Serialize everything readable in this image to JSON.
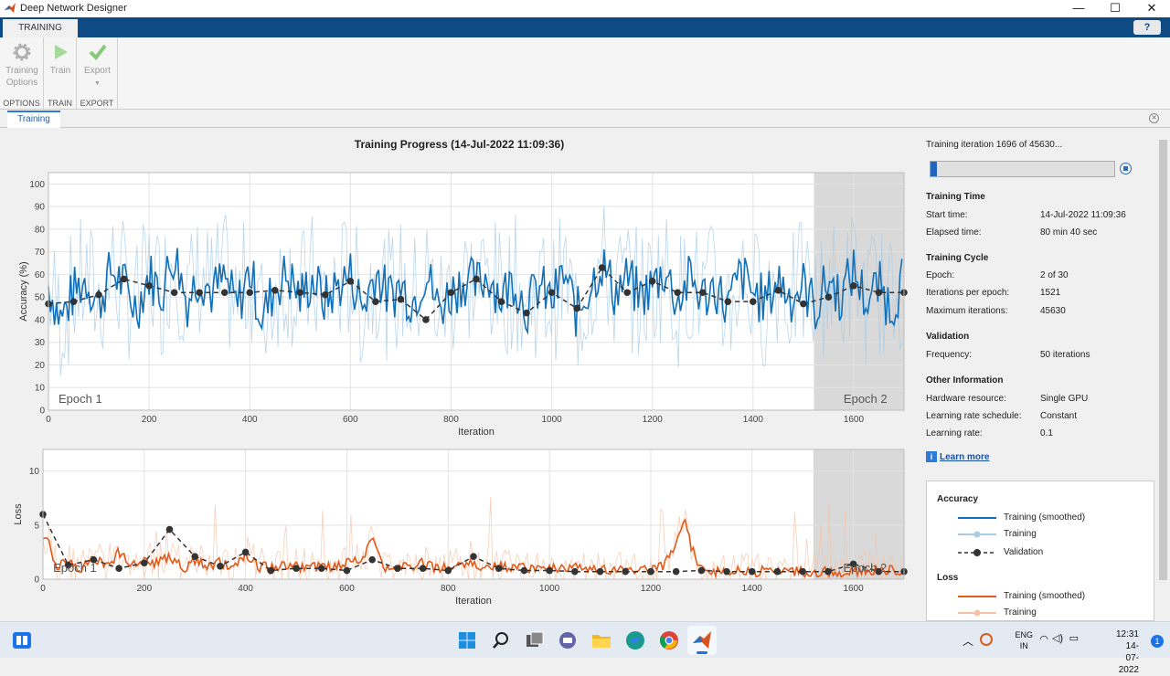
{
  "window": {
    "title": "Deep Network Designer",
    "minimize_glyph": "—",
    "maximize_glyph": "☐",
    "close_glyph": "✕"
  },
  "tabstrip": {
    "tab_label": "TRAINING",
    "help_glyph": "?"
  },
  "ribbon": {
    "groups": [
      {
        "label": "OPTIONS",
        "button": "Training Options",
        "button_line1": "Training",
        "button_line2": "Options",
        "icon": "gear-icon"
      },
      {
        "label": "TRAIN",
        "button": "Train",
        "icon": "play-icon"
      },
      {
        "label": "EXPORT",
        "button": "Export",
        "icon": "checkmark-icon"
      }
    ]
  },
  "document_tab": {
    "label": "Training"
  },
  "chart_title": "Training Progress (14-Jul-2022 11:09:36)",
  "info": {
    "iteration_text": "Training iteration 1696 of 45630...",
    "progress_fraction": 0.0372,
    "sections": {
      "training_time": {
        "title": "Training Time",
        "rows": [
          [
            "Start time:",
            "14-Jul-2022 11:09:36"
          ],
          [
            "Elapsed time:",
            "80 min 40 sec"
          ]
        ]
      },
      "training_cycle": {
        "title": "Training Cycle",
        "rows": [
          [
            "Epoch:",
            "2 of 30"
          ],
          [
            "Iterations per epoch:",
            "1521"
          ],
          [
            "Maximum iterations:",
            "45630"
          ]
        ]
      },
      "validation": {
        "title": "Validation",
        "rows": [
          [
            "Frequency:",
            "50 iterations"
          ]
        ]
      },
      "other": {
        "title": "Other Information",
        "rows": [
          [
            "Hardware resource:",
            "Single GPU"
          ],
          [
            "Learning rate schedule:",
            "Constant"
          ],
          [
            "Learning rate:",
            "0.1"
          ]
        ]
      }
    },
    "learn_more": "Learn more"
  },
  "legend": {
    "accuracy_title": "Accuracy",
    "accuracy_items": [
      "Training (smoothed)",
      "Training",
      "Validation"
    ],
    "loss_title": "Loss",
    "loss_items": [
      "Training (smoothed)",
      "Training"
    ]
  },
  "colors": {
    "accuracy_smoothed": "#1170b8",
    "accuracy_raw": "#a9cce6",
    "loss_smoothed": "#e05a1c",
    "loss_raw": "#f5c4a8",
    "validation": "#333333",
    "epoch_shade": "#d9d9d9",
    "brand_bar": "#0e4a84"
  },
  "chart_data": [
    {
      "type": "line",
      "ylabel": "Accuracy (%)",
      "xlabel": "Iteration",
      "xlim": [
        0,
        1700
      ],
      "ylim": [
        0,
        105
      ],
      "xticks": [
        0,
        200,
        400,
        600,
        800,
        1000,
        1200,
        1400,
        1600
      ],
      "yticks": [
        0,
        10,
        20,
        30,
        40,
        50,
        60,
        70,
        80,
        90,
        100
      ],
      "grid": true,
      "epoch_labels": [
        {
          "text": "Epoch 1",
          "x": 20
        },
        {
          "text": "Epoch 2",
          "x": 1580
        }
      ],
      "epoch2_start": 1521,
      "validation": {
        "x": [
          0,
          50,
          100,
          150,
          200,
          250,
          300,
          350,
          400,
          450,
          500,
          550,
          600,
          650,
          700,
          750,
          800,
          850,
          900,
          950,
          1000,
          1050,
          1100,
          1150,
          1200,
          1250,
          1300,
          1350,
          1400,
          1450,
          1500,
          1550,
          1600,
          1650,
          1700
        ],
        "y": [
          47,
          48,
          51,
          58,
          55,
          52,
          52,
          52,
          52,
          53,
          52,
          51,
          57,
          48,
          49,
          40,
          52,
          58,
          48,
          43,
          52,
          45,
          63,
          52,
          57,
          52,
          52,
          48,
          48,
          53,
          47,
          50,
          55,
          52,
          52
        ]
      },
      "smoothed_anchors": {
        "x": [
          0,
          25,
          50,
          75,
          100,
          125,
          150,
          175,
          200,
          225,
          250,
          275,
          300,
          325,
          350,
          375,
          400,
          425,
          450,
          475,
          500,
          525,
          550,
          575,
          600,
          625,
          650,
          675,
          700,
          725,
          750,
          775,
          800,
          825,
          850,
          875,
          900,
          925,
          950,
          975,
          1000,
          1025,
          1050,
          1075,
          1100,
          1125,
          1150,
          1175,
          1200,
          1225,
          1250,
          1275,
          1300,
          1325,
          1350,
          1375,
          1400,
          1425,
          1450,
          1475,
          1500,
          1525,
          1550,
          1575,
          1600,
          1625,
          1650,
          1675,
          1700
        ],
        "y": [
          55,
          40,
          52,
          58,
          47,
          62,
          55,
          45,
          60,
          52,
          70,
          48,
          60,
          52,
          58,
          45,
          62,
          40,
          55,
          60,
          50,
          58,
          48,
          55,
          60,
          45,
          62,
          50,
          55,
          48,
          62,
          45,
          52,
          58,
          55,
          60,
          50,
          58,
          45,
          55,
          48,
          60,
          42,
          55,
          65,
          52,
          58,
          50,
          55,
          62,
          48,
          58,
          50,
          55,
          45,
          60,
          52,
          48,
          58,
          50,
          55,
          45,
          58,
          50,
          62,
          48,
          55,
          45,
          60
        ]
      },
      "smoothed_amplitude": 12,
      "raw_amplitude": 30
    },
    {
      "type": "line",
      "ylabel": "Loss",
      "xlabel": "Iteration",
      "xlim": [
        0,
        1700
      ],
      "ylim": [
        0,
        12
      ],
      "xticks": [
        0,
        200,
        400,
        600,
        800,
        1000,
        1200,
        1400,
        1600
      ],
      "yticks": [
        0,
        5,
        10
      ],
      "grid": true,
      "epoch_labels": [
        {
          "text": "Epoch 1",
          "x": 20
        },
        {
          "text": "Epoch 2",
          "x": 1580
        }
      ],
      "epoch2_start": 1521,
      "validation": {
        "x": [
          0,
          50,
          100,
          150,
          200,
          250,
          300,
          350,
          400,
          450,
          500,
          550,
          600,
          650,
          700,
          750,
          800,
          850,
          900,
          950,
          1000,
          1050,
          1100,
          1150,
          1200,
          1250,
          1300,
          1350,
          1400,
          1450,
          1500,
          1550,
          1600,
          1650,
          1700
        ],
        "y": [
          6.0,
          1.3,
          1.8,
          1.0,
          1.5,
          4.6,
          2.1,
          1.2,
          2.5,
          0.8,
          1.0,
          1.0,
          0.8,
          1.8,
          1.0,
          1.0,
          0.8,
          2.1,
          1.0,
          0.8,
          0.8,
          0.7,
          0.7,
          0.7,
          0.7,
          0.7,
          0.8,
          0.7,
          0.7,
          0.7,
          0.7,
          0.7,
          1.4,
          0.7,
          0.7
        ]
      },
      "smoothed_anchors": {
        "x": [
          0,
          10,
          25,
          50,
          75,
          100,
          125,
          150,
          175,
          200,
          225,
          250,
          275,
          300,
          325,
          350,
          375,
          400,
          425,
          450,
          475,
          500,
          525,
          550,
          575,
          600,
          625,
          650,
          675,
          700,
          725,
          750,
          775,
          800,
          825,
          850,
          875,
          900,
          950,
          1000,
          1050,
          1100,
          1150,
          1200,
          1225,
          1250,
          1265,
          1280,
          1300,
          1325,
          1350,
          1400,
          1450,
          1500,
          1550,
          1600,
          1650,
          1700
        ],
        "y": [
          3.5,
          4.2,
          1.2,
          1.5,
          1.0,
          2.0,
          1.2,
          2.5,
          1.5,
          1.8,
          1.5,
          2.2,
          1.0,
          1.6,
          1.2,
          1.5,
          1.0,
          2.2,
          1.2,
          1.0,
          1.4,
          1.2,
          1.0,
          1.3,
          1.0,
          1.4,
          1.6,
          3.5,
          1.0,
          1.2,
          1.0,
          1.5,
          1.0,
          1.2,
          1.0,
          1.6,
          1.0,
          1.2,
          1.0,
          0.9,
          1.0,
          0.9,
          0.9,
          0.8,
          1.2,
          3.0,
          5.8,
          3.0,
          1.0,
          0.8,
          0.7,
          0.7,
          0.7,
          0.7,
          0.7,
          0.7,
          0.8,
          0.7
        ]
      },
      "smoothed_amplitude": 0.5,
      "raw_amplitude": 1.8
    }
  ],
  "taskbar": {
    "icons": [
      "widgets-icon",
      "windows-start-icon",
      "search-icon",
      "task-view-icon",
      "teams-chat-icon",
      "file-explorer-icon",
      "edge-icon",
      "chrome-icon",
      "matlab-icon"
    ],
    "language": "ENG",
    "region": "IN",
    "time": "12:31",
    "date": "14-07-2022",
    "notification_count": "1"
  }
}
